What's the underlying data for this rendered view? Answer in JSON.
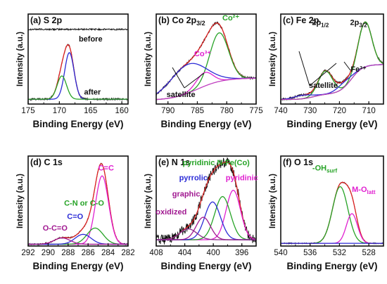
{
  "figure": {
    "ylabel": "Intensity (a.u.)",
    "xlabel": "Binding Energy (eV)"
  },
  "chart_data": [
    {
      "id": "a",
      "tag": "(a)",
      "title": "S 2p",
      "type": "line",
      "xlim": [
        175,
        159
      ],
      "ylim": [
        0,
        1.12
      ],
      "xticks": [
        175,
        170,
        165,
        160
      ],
      "xlabel": "Binding Energy (eV)",
      "ylabel": "Intensity (a.u.)",
      "series": [
        {
          "role": "before-spectrum",
          "color": "#111111",
          "noise": 0.01,
          "base": 0.93,
          "peaks": []
        },
        {
          "role": "after-spectrum",
          "color": "#111111",
          "noise": 0.012,
          "base": 0.06,
          "peaks": [
            [
              168.4,
              0.58,
              0.75
            ],
            [
              169.6,
              0.29,
              0.75
            ]
          ]
        },
        {
          "role": "fitted-envelope",
          "color": "#dd2222",
          "base": 0.06,
          "peaks": [
            [
              168.4,
              0.58,
              0.75
            ],
            [
              169.6,
              0.29,
              0.75
            ]
          ]
        },
        {
          "role": "s2p3-component",
          "color": "#2b2bd6",
          "base": 0.06,
          "peaks": [
            [
              168.4,
              0.58,
              0.75
            ]
          ]
        },
        {
          "role": "s2p1-component",
          "color": "#27a327",
          "base": 0.06,
          "peaks": [
            [
              169.6,
              0.29,
              0.75
            ]
          ]
        }
      ],
      "annotations": [
        {
          "text": "before",
          "x": 165,
          "y": 0.78,
          "color": "#111111"
        },
        {
          "text": "after",
          "x": 164.7,
          "y": 0.12,
          "color": "#111111"
        }
      ]
    },
    {
      "id": "b",
      "tag": "(b)",
      "title": "Co 2p",
      "title_sub": "3/2",
      "type": "line",
      "xlim": [
        792,
        775
      ],
      "ylim": [
        0,
        1.0
      ],
      "xticks": [
        790,
        785,
        780,
        775
      ],
      "xlabel": "Binding Energy (eV)",
      "ylabel": "Intensity (a.u.)",
      "series": [
        {
          "role": "raw-spectrum",
          "color": "#111111",
          "noise": 0.012,
          "base": "bgB",
          "peaks": [
            [
              781.3,
              0.54,
              1.6
            ],
            [
              783.8,
              0.15,
              1.4
            ],
            [
              786.6,
              0.32,
              3.0
            ]
          ]
        },
        {
          "role": "fitted-envelope",
          "color": "#dd2222",
          "base": "bgB",
          "peaks": [
            [
              781.3,
              0.54,
              1.6
            ],
            [
              783.8,
              0.15,
              1.4
            ],
            [
              786.6,
              0.32,
              3.0
            ]
          ]
        },
        {
          "role": "co2-component",
          "color": "#27a327",
          "base": "bgB",
          "peaks": [
            [
              781.3,
              0.54,
              1.6
            ]
          ]
        },
        {
          "role": "co3-component",
          "color": "#e020d0",
          "base": "bgB",
          "peaks": [
            [
              783.8,
              0.15,
              1.4
            ]
          ]
        },
        {
          "role": "satellite-component",
          "color": "#2b2bd6",
          "base": "bgB",
          "peaks": [
            [
              786.6,
              0.32,
              3.0
            ]
          ]
        },
        {
          "role": "background",
          "color": "#c040c0",
          "base": "bgB",
          "peaks": []
        }
      ],
      "annotations": [
        {
          "text": "Co²⁺",
          "x": 779.3,
          "y": 0.93,
          "color": "#27a327"
        },
        {
          "text": "Co³⁺",
          "x": 784.1,
          "y": 0.53,
          "color": "#e020d0"
        },
        {
          "text": "satellite",
          "x": 787.8,
          "y": 0.08,
          "color": "#111111"
        }
      ]
    },
    {
      "id": "c",
      "tag": "(c)",
      "title": "Fe 2p",
      "type": "line",
      "xlim": [
        740,
        705
      ],
      "ylim": [
        0,
        1.0
      ],
      "xticks": [
        740,
        730,
        720,
        710
      ],
      "xlabel": "Binding Energy (eV)",
      "ylabel": "Intensity (a.u.)",
      "series": [
        {
          "role": "raw-spectrum",
          "color": "#111111",
          "noise": 0.012,
          "base": "bgC",
          "peaks": [
            [
              711.3,
              0.5,
              2.3
            ],
            [
              724.8,
              0.26,
              2.4
            ],
            [
              718.5,
              0.06,
              2.5
            ],
            [
              732.5,
              0.04,
              3.0
            ]
          ]
        },
        {
          "role": "fitted-envelope",
          "color": "#dd2222",
          "base": "bgC",
          "peaks": [
            [
              711.3,
              0.5,
              2.3
            ],
            [
              724.8,
              0.26,
              2.4
            ],
            [
              718.5,
              0.06,
              2.5
            ],
            [
              732.5,
              0.04,
              3.0
            ]
          ]
        },
        {
          "role": "fe2p3-component",
          "color": "#27a327",
          "base": "bgC",
          "peaks": [
            [
              711.3,
              0.5,
              2.3
            ]
          ]
        },
        {
          "role": "fe2p1-component",
          "color": "#27a327",
          "base": "bgC",
          "peaks": [
            [
              724.8,
              0.26,
              2.4
            ]
          ]
        },
        {
          "role": "satellite-component",
          "color": "#2b2bd6",
          "base": "bgC",
          "peaks": [
            [
              718.5,
              0.06,
              2.5
            ],
            [
              732.5,
              0.04,
              3.0
            ]
          ]
        },
        {
          "role": "background",
          "color": "#c040c0",
          "base": "bgC",
          "peaks": []
        }
      ],
      "annotations": [
        {
          "text": "2p",
          "sub": "1/2",
          "x": 726.5,
          "y": 0.88,
          "color": "#111111"
        },
        {
          "text": "2p",
          "sub": "3/2",
          "x": 713.5,
          "y": 0.88,
          "color": "#111111"
        },
        {
          "text": "Fe³⁺",
          "x": 713.5,
          "y": 0.36,
          "color": "#111111"
        },
        {
          "text": "satellite",
          "x": 725.5,
          "y": 0.18,
          "color": "#111111"
        }
      ]
    },
    {
      "id": "d",
      "tag": "(d)",
      "title": "C 1s",
      "type": "line",
      "xlim": [
        292,
        282
      ],
      "ylim": [
        0,
        1.0
      ],
      "xticks": [
        292,
        290,
        288,
        286,
        284,
        282
      ],
      "xlabel": "Binding Energy (eV)",
      "ylabel": "Intensity (a.u.)",
      "series": [
        {
          "role": "raw-spectrum",
          "color": "#111111",
          "noise": 0.008,
          "base": 0.02,
          "peaks": [
            [
              284.6,
              0.76,
              0.65
            ],
            [
              285.3,
              0.18,
              0.8
            ],
            [
              286.5,
              0.11,
              0.8
            ],
            [
              288.6,
              0.07,
              0.8
            ]
          ]
        },
        {
          "role": "fitted-envelope",
          "color": "#dd2222",
          "base": 0.02,
          "peaks": [
            [
              284.6,
              0.76,
              0.65
            ],
            [
              285.3,
              0.18,
              0.8
            ],
            [
              286.5,
              0.11,
              0.8
            ],
            [
              288.6,
              0.07,
              0.8
            ]
          ]
        },
        {
          "role": "cc-component",
          "color": "#e020d0",
          "base": 0.02,
          "peaks": [
            [
              284.6,
              0.76,
              0.65
            ]
          ]
        },
        {
          "role": "cn-component",
          "color": "#27a327",
          "base": 0.02,
          "peaks": [
            [
              285.3,
              0.18,
              0.8
            ]
          ]
        },
        {
          "role": "co-component",
          "color": "#2b2bd6",
          "base": 0.02,
          "peaks": [
            [
              286.5,
              0.11,
              0.8
            ]
          ]
        },
        {
          "role": "oco-component",
          "color": "#a01890",
          "base": 0.02,
          "peaks": [
            [
              288.6,
              0.07,
              0.8
            ]
          ]
        }
      ],
      "annotations": [
        {
          "text": "C=C",
          "x": 284.2,
          "y": 0.84,
          "color": "#e020d0"
        },
        {
          "text": "C-N or C-O",
          "x": 286.4,
          "y": 0.45,
          "color": "#27a327"
        },
        {
          "text": "C=O",
          "x": 287.3,
          "y": 0.3,
          "color": "#2b2bd6"
        },
        {
          "text": "O-C=O",
          "x": 289.3,
          "y": 0.17,
          "color": "#a01890"
        }
      ]
    },
    {
      "id": "e",
      "tag": "(e)",
      "title": "N 1s",
      "type": "line",
      "xlim": [
        408,
        394
      ],
      "ylim": [
        0,
        1.0
      ],
      "xticks": [
        408,
        404,
        400,
        396
      ],
      "xlabel": "Binding Energy (eV)",
      "ylabel": "Intensity (a.u.)",
      "series": [
        {
          "role": "raw-spectrum",
          "color": "#111111",
          "noise": 0.055,
          "base": 0.07,
          "peaks": [
            [
              397.2,
              0.55,
              1.0
            ],
            [
              398.7,
              0.48,
              1.1
            ],
            [
              400.1,
              0.42,
              1.1
            ],
            [
              401.4,
              0.25,
              1.0
            ],
            [
              403.5,
              0.12,
              1.2
            ]
          ]
        },
        {
          "role": "fitted-envelope",
          "color": "#dd2222",
          "base": 0.07,
          "peaks": [
            [
              397.2,
              0.55,
              1.0
            ],
            [
              398.7,
              0.48,
              1.1
            ],
            [
              400.1,
              0.42,
              1.1
            ],
            [
              401.4,
              0.25,
              1.0
            ],
            [
              403.5,
              0.12,
              1.2
            ]
          ]
        },
        {
          "role": "pyridinic-component",
          "color": "#e020d0",
          "base": 0.07,
          "peaks": [
            [
              397.2,
              0.55,
              1.0
            ]
          ]
        },
        {
          "role": "pyridinic-nfe-component",
          "color": "#27a327",
          "base": 0.07,
          "peaks": [
            [
              398.7,
              0.48,
              1.1
            ]
          ]
        },
        {
          "role": "pyrrolic-component",
          "color": "#2b2bd6",
          "base": 0.07,
          "peaks": [
            [
              400.1,
              0.42,
              1.1
            ]
          ]
        },
        {
          "role": "graphitic-component",
          "color": "#a01890",
          "base": 0.07,
          "peaks": [
            [
              401.4,
              0.25,
              1.0
            ]
          ]
        },
        {
          "role": "oxidized-component",
          "color": "#8a2a8a",
          "base": 0.07,
          "peaks": [
            [
              403.5,
              0.12,
              1.2
            ]
          ]
        }
      ],
      "annotations": [
        {
          "text": "pyridinic N-Fe(Co)",
          "x": 399.6,
          "y": 0.9,
          "color": "#27a327"
        },
        {
          "text": "pyrrolic",
          "x": 402.8,
          "y": 0.73,
          "color": "#2b2bd6"
        },
        {
          "text": "pyridinic",
          "x": 396.0,
          "y": 0.73,
          "color": "#e020d0"
        },
        {
          "text": "graphic",
          "x": 403.8,
          "y": 0.55,
          "color": "#a01890"
        },
        {
          "text": "oxidized",
          "x": 405.9,
          "y": 0.35,
          "color": "#a01890"
        }
      ]
    },
    {
      "id": "f",
      "tag": "(f)",
      "title": "O 1s",
      "type": "line",
      "xlim": [
        540,
        526
      ],
      "ylim": [
        0,
        1.0
      ],
      "xticks": [
        540,
        536,
        532,
        528
      ],
      "xlabel": "Binding Energy (eV)",
      "ylabel": "Intensity (a.u.)",
      "series": [
        {
          "role": "raw-spectrum",
          "color": "#111111",
          "noise": 0.006,
          "base": 0.03,
          "peaks": [
            [
              531.9,
              0.63,
              1.05
            ],
            [
              530.3,
              0.33,
              0.75
            ]
          ]
        },
        {
          "role": "fitted-envelope",
          "color": "#dd2222",
          "base": 0.03,
          "peaks": [
            [
              531.9,
              0.63,
              1.05
            ],
            [
              530.3,
              0.33,
              0.75
            ]
          ]
        },
        {
          "role": "oh-component",
          "color": "#27a327",
          "base": 0.03,
          "peaks": [
            [
              531.9,
              0.63,
              1.05
            ]
          ]
        },
        {
          "role": "mo-component",
          "color": "#e020d0",
          "base": 0.03,
          "peaks": [
            [
              530.3,
              0.33,
              0.75
            ]
          ]
        },
        {
          "role": "background",
          "color": "#2b2bd6",
          "base": 0.03,
          "peaks": []
        }
      ],
      "annotations": [
        {
          "text": "-OH",
          "sub": "surf",
          "x": 534.0,
          "y": 0.84,
          "color": "#27a327"
        },
        {
          "text": "M-O",
          "sub": "latt",
          "x": 528.7,
          "y": 0.6,
          "color": "#e020d0"
        }
      ]
    }
  ]
}
